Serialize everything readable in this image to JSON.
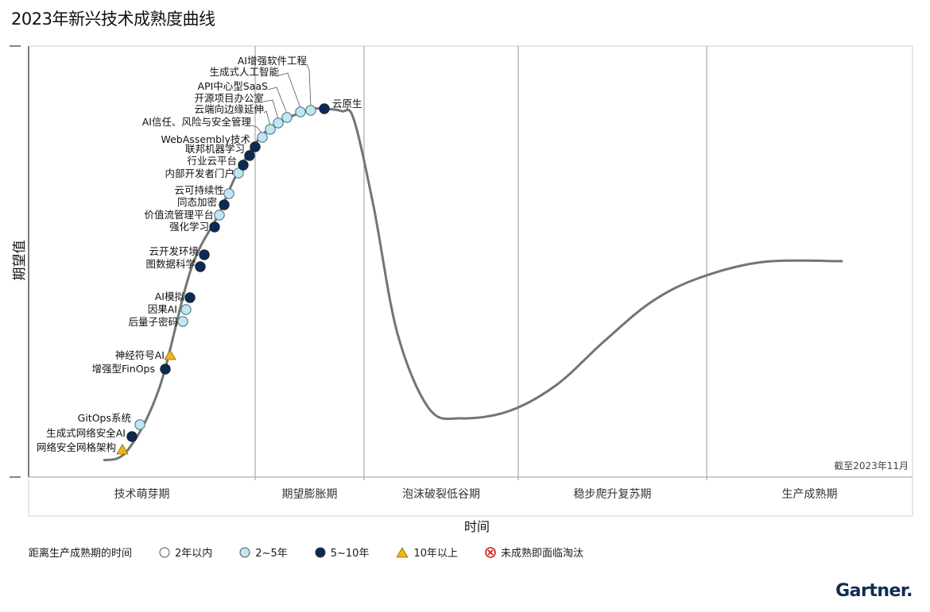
{
  "title": "2023年新兴技术成熟度曲线",
  "as_of": "截至2023年11月",
  "brand": "Gartner.",
  "legend": {
    "title": "距离生产成熟期的时间",
    "items": [
      {
        "key": "lt2",
        "label": "2年以内",
        "fill": "#ffffff"
      },
      {
        "key": "2to5",
        "label": "2~5年",
        "fill": "#bfe6f2"
      },
      {
        "key": "5to10",
        "label": "5~10年",
        "fill": "#0b2a57"
      },
      {
        "key": "gt10",
        "label": "10年以上",
        "fill": "#f2b516"
      },
      {
        "key": "obsolete",
        "label": "未成熟即面临淘汰",
        "fill": "#ffffff",
        "stroke": "#d11a1a"
      }
    ]
  },
  "chart_data": {
    "type": "line",
    "title": "2023年新兴技术成熟度曲线",
    "xlabel": "时间",
    "ylabel": "期望值",
    "grid": false,
    "legend_position": "bottom",
    "phases": [
      "技术萌芽期",
      "期望膨胀期",
      "泡沫破裂低谷期",
      "稳步爬升复苏期",
      "生产成熟期"
    ],
    "technologies": [
      {
        "name": "网络安全网格架构",
        "category": "gt10",
        "phase": "技术萌芽期"
      },
      {
        "name": "生成式网络安全AI",
        "category": "5to10",
        "phase": "技术萌芽期"
      },
      {
        "name": "GitOps系统",
        "category": "2to5",
        "phase": "技术萌芽期"
      },
      {
        "name": "增强型FinOps",
        "category": "5to10",
        "phase": "技术萌芽期"
      },
      {
        "name": "神经符号AI",
        "category": "gt10",
        "phase": "技术萌芽期"
      },
      {
        "name": "后量子密码",
        "category": "2to5",
        "phase": "技术萌芽期"
      },
      {
        "name": "因果AI",
        "category": "2to5",
        "phase": "技术萌芽期"
      },
      {
        "name": "AI模拟",
        "category": "5to10",
        "phase": "技术萌芽期"
      },
      {
        "name": "图数据科学",
        "category": "5to10",
        "phase": "技术萌芽期"
      },
      {
        "name": "云开发环境",
        "category": "5to10",
        "phase": "技术萌芽期"
      },
      {
        "name": "强化学习",
        "category": "5to10",
        "phase": "技术萌芽期"
      },
      {
        "name": "价值流管理平台",
        "category": "2to5",
        "phase": "技术萌芽期"
      },
      {
        "name": "同态加密",
        "category": "5to10",
        "phase": "技术萌芽期"
      },
      {
        "name": "云可持续性",
        "category": "2to5",
        "phase": "技术萌芽期"
      },
      {
        "name": "内部开发者门户",
        "category": "2to5",
        "phase": "技术萌芽期"
      },
      {
        "name": "行业云平台",
        "category": "5to10",
        "phase": "技术萌芽期"
      },
      {
        "name": "联邦机器学习",
        "category": "5to10",
        "phase": "技术萌芽期"
      },
      {
        "name": "WebAssembly技术",
        "category": "5to10",
        "phase": "技术萌芽期"
      },
      {
        "name": "AI信任、风险与安全管理",
        "category": "2to5",
        "phase": "期望膨胀期"
      },
      {
        "name": "云端向边缘延伸",
        "category": "2to5",
        "phase": "期望膨胀期"
      },
      {
        "name": "开源项目办公室",
        "category": "2to5",
        "phase": "期望膨胀期"
      },
      {
        "name": "API中心型SaaS",
        "category": "2to5",
        "phase": "期望膨胀期"
      },
      {
        "name": "生成式人工智能",
        "category": "2to5",
        "phase": "期望膨胀期"
      },
      {
        "name": "AI增强软件工程",
        "category": "2to5",
        "phase": "期望膨胀期"
      },
      {
        "name": "云原生",
        "category": "5to10",
        "phase": "期望膨胀期"
      }
    ]
  }
}
